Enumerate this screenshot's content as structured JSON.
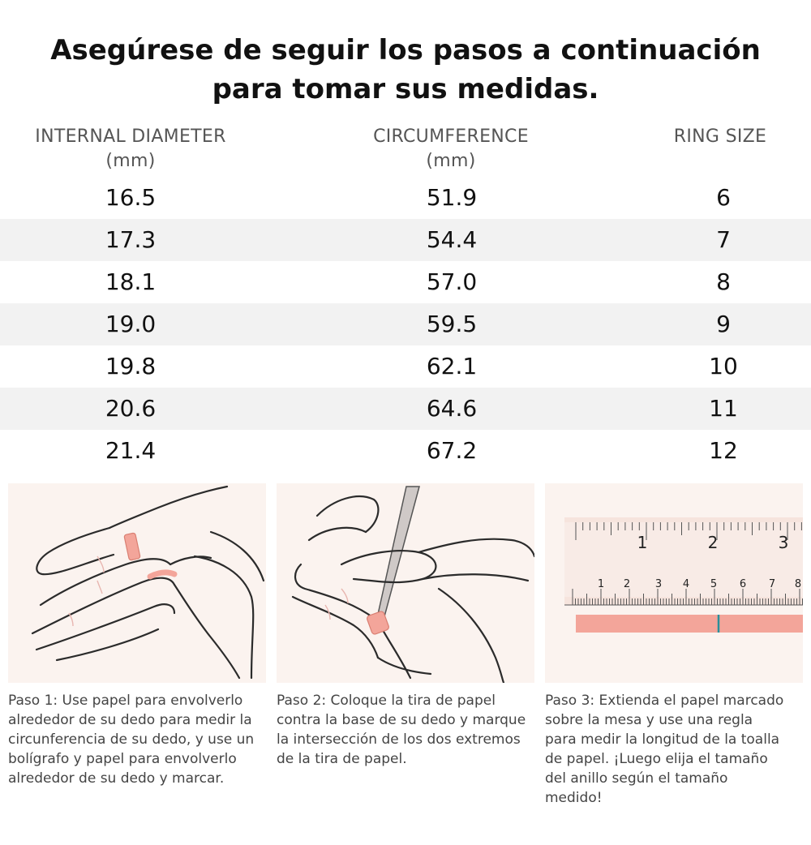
{
  "title": {
    "line1": "Asegúrese de seguir los pasos a continuación",
    "line2": "para tomar sus medidas."
  },
  "table": {
    "headers": [
      {
        "label": "INTERNAL DIAMETER",
        "unit": "(mm)"
      },
      {
        "label": "CIRCUMFERENCE",
        "unit": "(mm)"
      },
      {
        "label": "RING SIZE",
        "unit": ""
      }
    ],
    "rows": [
      [
        "16.5",
        "51.9",
        "6"
      ],
      [
        "17.3",
        "54.4",
        "7"
      ],
      [
        "18.1",
        "57.0",
        "8"
      ],
      [
        "19.0",
        "59.5",
        "9"
      ],
      [
        "19.8",
        "62.1",
        "10"
      ],
      [
        "20.6",
        "64.6",
        "11"
      ],
      [
        "21.4",
        "67.2",
        "12"
      ]
    ]
  },
  "ruler": {
    "top_numbers": [
      "1",
      "2",
      "3"
    ],
    "bottom_numbers": [
      "1",
      "2",
      "3",
      "4",
      "5",
      "6",
      "7",
      "8"
    ]
  },
  "steps": [
    "Paso 1: Use papel para envolverlo alrededor de su dedo para medir la circunferencia de su dedo, y use un bolígrafo y papel para envolverlo alrededor de su dedo y marcar.",
    "Paso 2: Coloque la tira de papel contra la base de su dedo y marque la intersección de los dos extremos de la tira de papel.",
    "Paso 3: Extienda el papel marcado sobre la mesa y use una regla para medir la longitud de la toalla de papel. ¡Luego elija el tamaño del anillo según el tamaño medido!"
  ],
  "colors": {
    "panel_bg": "#fbf3ef",
    "strip": "#f3a59a",
    "ruler": "#f6e4dd",
    "mark": "#2a8f9a",
    "stripe": "#f2f2f2"
  }
}
